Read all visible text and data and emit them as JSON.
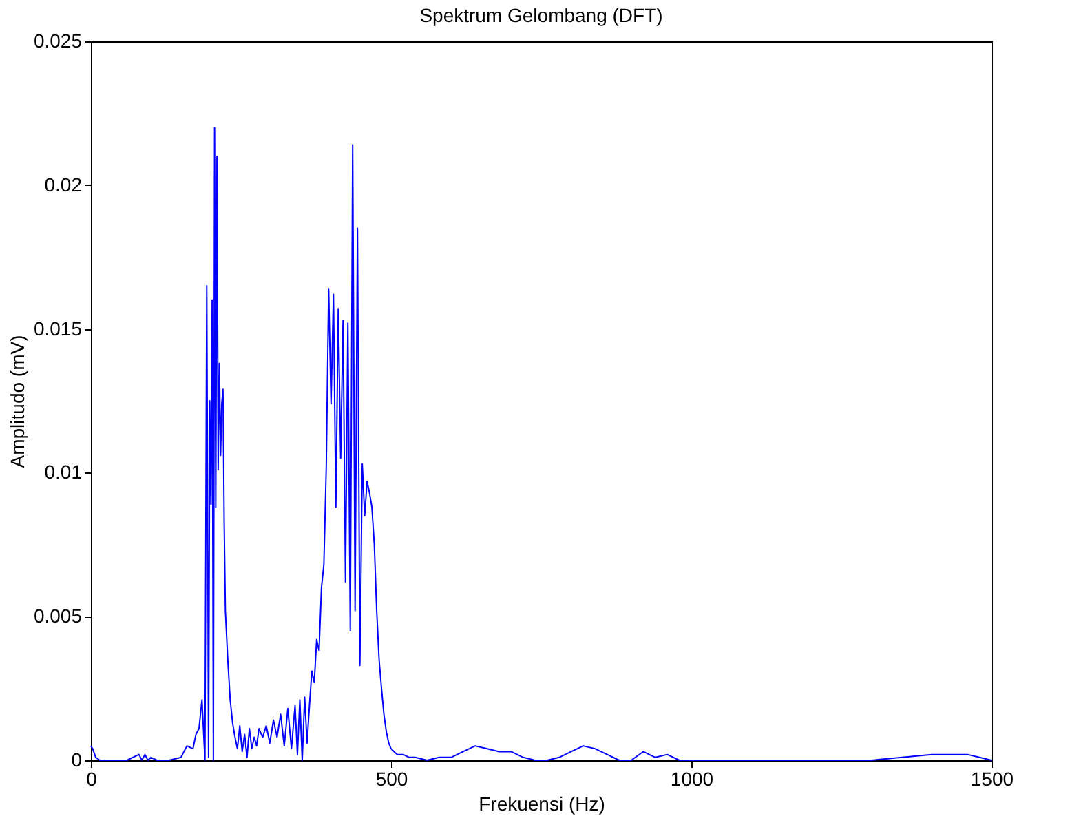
{
  "chart_data": {
    "type": "line",
    "title": "Spektrum Gelombang (DFT)",
    "xlabel": "Frekuensi (Hz)",
    "ylabel": "Amplitudo (mV)",
    "xlim": [
      0,
      1500
    ],
    "ylim": [
      0,
      0.025
    ],
    "xticks": [
      0,
      500,
      1000,
      1500
    ],
    "yticks": [
      0,
      0.005,
      0.01,
      0.015,
      0.02,
      0.025
    ],
    "series": [
      {
        "color": "#0000ff",
        "x": [
          0,
          3,
          8,
          15,
          25,
          40,
          60,
          80,
          85,
          90,
          95,
          100,
          110,
          130,
          150,
          160,
          170,
          175,
          180,
          185,
          190,
          193,
          196,
          198,
          200,
          202,
          204,
          206,
          208,
          210,
          212,
          214,
          216,
          218,
          220,
          222,
          224,
          228,
          232,
          236,
          240,
          244,
          248,
          252,
          256,
          260,
          264,
          268,
          272,
          276,
          280,
          286,
          292,
          298,
          304,
          310,
          316,
          322,
          328,
          334,
          340,
          344,
          348,
          352,
          356,
          360,
          364,
          368,
          372,
          376,
          380,
          384,
          388,
          392,
          396,
          400,
          404,
          408,
          412,
          416,
          420,
          424,
          428,
          432,
          436,
          440,
          444,
          448,
          452,
          456,
          460,
          464,
          468,
          472,
          476,
          480,
          484,
          488,
          492,
          496,
          500,
          505,
          510,
          520,
          530,
          540,
          560,
          580,
          600,
          620,
          640,
          660,
          680,
          700,
          720,
          740,
          760,
          780,
          800,
          820,
          840,
          860,
          880,
          900,
          920,
          940,
          960,
          980,
          1000,
          1200,
          1300,
          1400,
          1430,
          1460,
          1480,
          1500
        ],
        "values": [
          0.0005,
          0.0004,
          0.0001,
          0,
          0,
          0,
          0,
          0.0002,
          0,
          0.0002,
          0,
          0.0001,
          0,
          0,
          0.0001,
          0.0005,
          0.0004,
          0.0009,
          0.0011,
          0.0021,
          0,
          0.0165,
          0.0001,
          0.0125,
          0.0089,
          0.016,
          0,
          0.022,
          0.0088,
          0.021,
          0.0101,
          0.0138,
          0.0106,
          0.0124,
          0.0129,
          0.0082,
          0.0052,
          0.0035,
          0.0021,
          0.0013,
          0.0008,
          0.0004,
          0.0012,
          0.0003,
          0.0009,
          0.0001,
          0.0011,
          0.0004,
          0.0008,
          0.0005,
          0.0011,
          0.0008,
          0.0012,
          0.0006,
          0.0014,
          0.0008,
          0.0016,
          0.0005,
          0.0018,
          0.0004,
          0.0019,
          0.0002,
          0.0021,
          0,
          0.0022,
          0.0006,
          0.0019,
          0.0031,
          0.0027,
          0.0042,
          0.0038,
          0.006,
          0.0068,
          0.0102,
          0.0164,
          0.0124,
          0.0162,
          0.0088,
          0.0157,
          0.0105,
          0.0153,
          0.0062,
          0.0152,
          0.0045,
          0.0214,
          0.0052,
          0.0185,
          0.0033,
          0.0103,
          0.0085,
          0.0097,
          0.0093,
          0.0088,
          0.0075,
          0.0052,
          0.0035,
          0.0025,
          0.0016,
          0.001,
          0.0006,
          0.0004,
          0.0003,
          0.0002,
          0.0002,
          0.0001,
          0.0001,
          0,
          0.0001,
          0.0001,
          0.0003,
          0.0005,
          0.0004,
          0.0003,
          0.0003,
          0.0001,
          0,
          0,
          0.0001,
          0.0003,
          0.0005,
          0.0004,
          0.0002,
          0,
          0,
          0.0003,
          0.0001,
          0.0002,
          0,
          0,
          0,
          0,
          0.0002,
          0.0002,
          0.0002,
          0.0001,
          0
        ]
      }
    ]
  }
}
